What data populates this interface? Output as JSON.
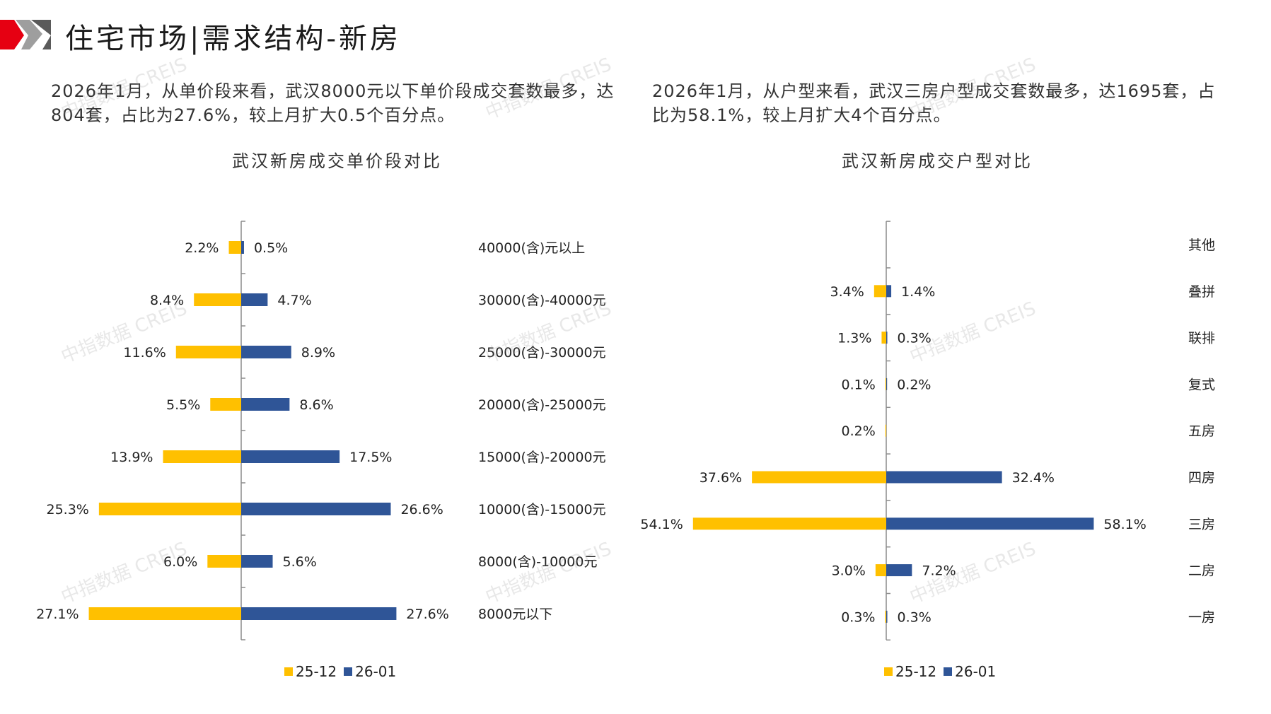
{
  "header": {
    "title": "住宅市场|需求结构-新房"
  },
  "left_panel": {
    "description": "2026年1月，从单价段来看，武汉8000元以下单价段成交套数最多，达804套，占比为27.6%，较上月扩大0.5个百分点。"
  },
  "right_panel": {
    "description": "2026年1月，从户型来看，武汉三房户型成交套数最多，达1695套，占比为58.1%，较上月扩大4个百分点。"
  },
  "watermark_text": "中指数据 CREIS",
  "colors": {
    "prev": "#FFC000",
    "curr": "#2F5597",
    "accent_red": "#E60012"
  },
  "chart_data": [
    {
      "type": "bar",
      "orientation": "horizontal-diverging",
      "title": "武汉新房成交单价段对比",
      "categories": [
        "40000(含)元以上",
        "30000(含)-40000元",
        "25000(含)-30000元",
        "20000(含)-25000元",
        "15000(含)-20000元",
        "10000(含)-15000元",
        "8000(含)-10000元",
        "8000元以下"
      ],
      "series": [
        {
          "name": "25-12",
          "values": [
            2.2,
            8.4,
            11.6,
            5.5,
            13.9,
            25.3,
            6.0,
            27.1
          ],
          "labels": [
            "2.2%",
            "8.4%",
            "11.6%",
            "5.5%",
            "13.9%",
            "25.3%",
            "6.0%",
            "27.1%"
          ]
        },
        {
          "name": "26-01",
          "values": [
            0.5,
            4.7,
            8.9,
            8.6,
            17.5,
            26.6,
            5.6,
            27.6
          ],
          "labels": [
            "0.5%",
            "4.7%",
            "8.9%",
            "8.6%",
            "17.5%",
            "26.6%",
            "5.6%",
            "27.6%"
          ]
        }
      ],
      "legend": [
        "25-12",
        "26-01"
      ]
    },
    {
      "type": "bar",
      "orientation": "horizontal-diverging",
      "title": "武汉新房成交户型对比",
      "categories": [
        "其他",
        "叠拼",
        "联排",
        "复式",
        "五房",
        "四房",
        "三房",
        "二房",
        "一房"
      ],
      "series": [
        {
          "name": "25-12",
          "values": [
            null,
            3.4,
            1.3,
            0.1,
            0.2,
            37.6,
            54.1,
            3.0,
            0.3
          ],
          "labels": [
            "",
            "3.4%",
            "1.3%",
            "0.1%",
            "0.2%",
            "37.6%",
            "54.1%",
            "3.0%",
            "0.3%"
          ]
        },
        {
          "name": "26-01",
          "values": [
            null,
            1.4,
            0.3,
            0.2,
            null,
            32.4,
            58.1,
            7.2,
            0.3
          ],
          "labels": [
            "",
            "1.4%",
            "0.3%",
            "0.2%",
            "",
            "32.4%",
            "58.1%",
            "7.2%",
            "0.3%"
          ]
        }
      ],
      "legend": [
        "25-12",
        "26-01"
      ]
    }
  ]
}
